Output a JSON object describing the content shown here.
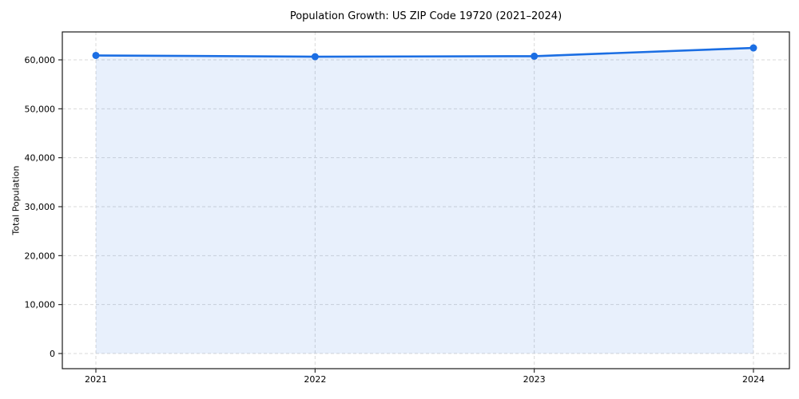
{
  "chart_data": {
    "type": "area",
    "title": "Population Growth: US ZIP Code 19720 (2021–2024)",
    "xlabel": "",
    "ylabel": "Total Population",
    "x": [
      2021,
      2022,
      2023,
      2024
    ],
    "xtick_labels": [
      "2021",
      "2022",
      "2023",
      "2024"
    ],
    "series": [
      {
        "name": "Total Population",
        "values": [
          60900,
          60650,
          60750,
          62440
        ]
      }
    ],
    "yticks": [
      0,
      10000,
      20000,
      30000,
      40000,
      50000,
      60000
    ],
    "ytick_labels": [
      "0",
      "10,000",
      "20,000",
      "30,000",
      "40,000",
      "50,000",
      "60,000"
    ],
    "ylim": [
      0,
      65700
    ],
    "grid": "dashed",
    "legend": "none",
    "colors": {
      "line": "#1b6ee3",
      "marker": "#1b6ee3",
      "area_fill": "#1b6ee3",
      "area_opacity": "0.10",
      "grid": "#d9d9d9",
      "spine": "#1a1a1a",
      "text": "#000000",
      "background": "#ffffff"
    }
  }
}
